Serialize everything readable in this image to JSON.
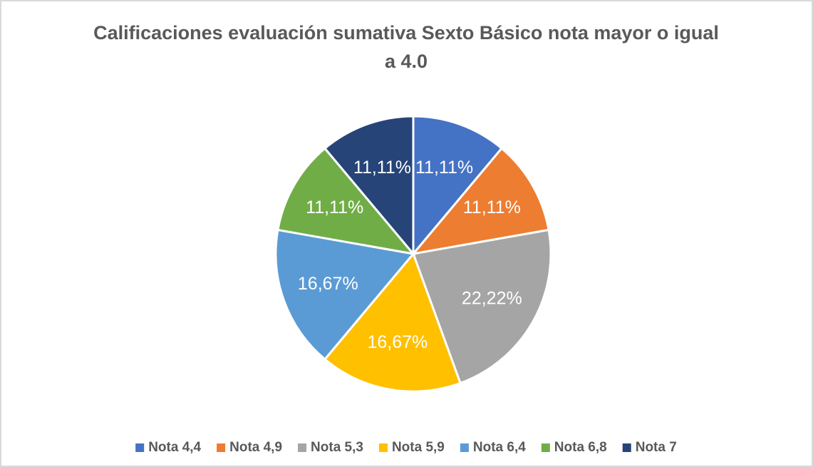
{
  "chart_data": {
    "type": "pie",
    "title": "Calificaciones evaluación sumativa Sexto Básico nota mayor o igual a 4.0",
    "categories": [
      "Nota 4,4",
      "Nota 4,9",
      "Nota 5,3",
      "Nota 5,9",
      "Nota 6,4",
      "Nota 6,8",
      "Nota 7"
    ],
    "values": [
      11.11,
      11.11,
      22.22,
      16.67,
      16.67,
      11.11,
      11.11
    ],
    "value_labels": [
      "11,11%",
      "11,11%",
      "22,22%",
      "16,67%",
      "16,67%",
      "11,11%",
      "11,11%"
    ],
    "colors": [
      "#4472c4",
      "#ed7d31",
      "#a5a5a5",
      "#ffc000",
      "#5b9bd5",
      "#70ad47",
      "#264478"
    ],
    "legend": "bottom"
  }
}
